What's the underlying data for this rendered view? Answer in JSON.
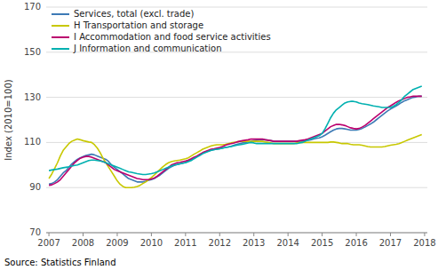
{
  "chart_data": {
    "type": "line",
    "ylabel": "Index (2010=100)",
    "source": "Source: Statistics Finland",
    "ylim": [
      70,
      170
    ],
    "yticks": [
      70,
      90,
      110,
      130,
      150,
      170
    ],
    "xlim": [
      2006.92,
      2018.08
    ],
    "xticks": [
      2007,
      2008,
      2009,
      2010,
      2011,
      2012,
      2013,
      2014,
      2015,
      2016,
      2017,
      2018
    ],
    "grid": true,
    "legend": "upper left",
    "x": [
      2007.0,
      2007.083,
      2007.167,
      2007.25,
      2007.333,
      2007.417,
      2007.5,
      2007.583,
      2007.667,
      2007.75,
      2007.833,
      2007.917,
      2008.0,
      2008.083,
      2008.167,
      2008.25,
      2008.333,
      2008.417,
      2008.5,
      2008.583,
      2008.667,
      2008.75,
      2008.833,
      2008.917,
      2009.0,
      2009.083,
      2009.167,
      2009.25,
      2009.333,
      2009.417,
      2009.5,
      2009.583,
      2009.667,
      2009.75,
      2009.833,
      2009.917,
      2010.0,
      2010.083,
      2010.167,
      2010.25,
      2010.333,
      2010.417,
      2010.5,
      2010.583,
      2010.667,
      2010.75,
      2010.833,
      2010.917,
      2011.0,
      2011.083,
      2011.167,
      2011.25,
      2011.333,
      2011.417,
      2011.5,
      2011.583,
      2011.667,
      2011.75,
      2011.833,
      2011.917,
      2012.0,
      2012.083,
      2012.167,
      2012.25,
      2012.333,
      2012.417,
      2012.5,
      2012.583,
      2012.667,
      2012.75,
      2012.833,
      2012.917,
      2013.0,
      2013.083,
      2013.167,
      2013.25,
      2013.333,
      2013.417,
      2013.5,
      2013.583,
      2013.667,
      2013.75,
      2013.833,
      2013.917,
      2014.0,
      2014.083,
      2014.167,
      2014.25,
      2014.333,
      2014.417,
      2014.5,
      2014.583,
      2014.667,
      2014.75,
      2014.833,
      2014.917,
      2015.0,
      2015.083,
      2015.167,
      2015.25,
      2015.333,
      2015.417,
      2015.5,
      2015.583,
      2015.667,
      2015.75,
      2015.833,
      2015.917,
      2016.0,
      2016.083,
      2016.167,
      2016.25,
      2016.333,
      2016.417,
      2016.5,
      2016.583,
      2016.667,
      2016.75,
      2016.833,
      2016.917,
      2017.0,
      2017.083,
      2017.167,
      2017.25,
      2017.333,
      2017.417,
      2017.5,
      2017.583,
      2017.667,
      2017.75,
      2017.833,
      2017.917
    ],
    "series": [
      {
        "name": "Services, total (excl. trade)",
        "color": "#3d7ab5",
        "values": [
          91.5,
          91.8,
          92.5,
          93.5,
          95.0,
          96.5,
          97.5,
          99.0,
          100.5,
          101.5,
          102.5,
          103.2,
          103.8,
          104.2,
          104.5,
          104.8,
          104.5,
          104.0,
          103.5,
          103.0,
          102.5,
          101.5,
          100.0,
          99.0,
          98.0,
          97.0,
          96.0,
          95.0,
          94.0,
          93.5,
          93.0,
          92.5,
          92.5,
          92.5,
          92.8,
          93.2,
          93.5,
          94.0,
          94.8,
          95.5,
          96.5,
          97.5,
          98.5,
          99.2,
          99.8,
          100.2,
          100.5,
          100.8,
          101.2,
          101.8,
          102.5,
          103.0,
          103.8,
          104.5,
          105.2,
          105.8,
          106.2,
          106.5,
          106.8,
          107.0,
          107.2,
          107.5,
          107.8,
          108.0,
          108.3,
          108.8,
          109.2,
          109.5,
          109.8,
          110.0,
          110.3,
          110.5,
          110.8,
          111.0,
          111.2,
          111.2,
          111.2,
          111.0,
          110.8,
          110.5,
          110.5,
          110.5,
          110.5,
          110.5,
          110.5,
          110.5,
          110.5,
          110.5,
          110.5,
          110.5,
          110.8,
          111.0,
          111.2,
          111.5,
          111.8,
          112.0,
          112.5,
          113.2,
          114.0,
          114.8,
          115.5,
          116.0,
          116.2,
          116.2,
          116.0,
          115.8,
          115.5,
          115.5,
          115.5,
          115.8,
          116.2,
          116.8,
          117.5,
          118.2,
          119.0,
          120.0,
          121.0,
          122.0,
          123.0,
          124.0,
          124.8,
          125.5,
          126.2,
          127.0,
          127.8,
          128.5,
          129.0,
          129.5,
          130.0,
          130.2,
          130.5,
          130.5
        ]
      },
      {
        "name": "H Transportation and storage",
        "color": "#c8c800",
        "values": [
          94.0,
          96.0,
          98.5,
          101.0,
          104.0,
          106.5,
          108.0,
          109.5,
          110.5,
          111.0,
          111.5,
          111.2,
          110.8,
          110.5,
          110.2,
          110.0,
          109.0,
          107.5,
          105.5,
          103.0,
          101.0,
          99.0,
          97.0,
          95.0,
          93.0,
          91.5,
          90.5,
          90.0,
          90.0,
          90.0,
          90.2,
          90.5,
          91.0,
          91.8,
          92.5,
          93.5,
          94.5,
          95.5,
          96.8,
          98.0,
          99.2,
          100.2,
          101.0,
          101.5,
          101.8,
          102.0,
          102.2,
          102.5,
          102.8,
          103.2,
          104.0,
          104.8,
          105.5,
          106.2,
          107.0,
          107.5,
          108.0,
          108.5,
          108.8,
          109.0,
          109.0,
          109.0,
          109.2,
          109.5,
          109.8,
          110.0,
          110.2,
          110.5,
          110.5,
          110.5,
          110.5,
          110.5,
          110.5,
          110.5,
          110.5,
          110.5,
          110.2,
          110.0,
          109.8,
          109.5,
          109.5,
          109.5,
          109.5,
          109.5,
          109.5,
          109.5,
          109.5,
          109.8,
          110.0,
          110.0,
          110.0,
          110.0,
          110.0,
          110.0,
          110.0,
          110.0,
          110.0,
          110.0,
          110.0,
          110.2,
          110.2,
          110.0,
          109.8,
          109.5,
          109.5,
          109.5,
          109.2,
          109.0,
          109.0,
          109.0,
          108.8,
          108.5,
          108.2,
          108.0,
          108.0,
          108.0,
          108.0,
          108.0,
          108.2,
          108.5,
          108.8,
          109.0,
          109.2,
          109.5,
          110.0,
          110.5,
          111.0,
          111.5,
          112.0,
          112.5,
          113.0,
          113.5
        ]
      },
      {
        "name": "I Accommodation and food service activities",
        "color": "#bb006e",
        "values": [
          91.0,
          91.2,
          91.8,
          92.5,
          93.5,
          95.0,
          96.5,
          98.0,
          99.5,
          101.0,
          102.0,
          103.0,
          103.5,
          103.8,
          103.8,
          103.5,
          103.0,
          102.5,
          102.0,
          101.5,
          101.0,
          100.0,
          99.0,
          98.0,
          97.5,
          97.0,
          96.5,
          96.0,
          95.5,
          95.0,
          94.5,
          94.0,
          93.8,
          93.5,
          93.5,
          93.5,
          93.8,
          94.2,
          95.0,
          96.0,
          97.0,
          98.0,
          99.0,
          100.0,
          100.5,
          101.0,
          101.2,
          101.5,
          101.8,
          102.2,
          102.8,
          103.5,
          104.0,
          104.8,
          105.5,
          106.0,
          106.5,
          107.0,
          107.2,
          107.5,
          107.8,
          108.2,
          108.8,
          109.2,
          109.5,
          109.8,
          110.2,
          110.5,
          110.8,
          111.0,
          111.2,
          111.5,
          111.5,
          111.5,
          111.5,
          111.5,
          111.2,
          111.0,
          110.8,
          110.5,
          110.5,
          110.5,
          110.5,
          110.5,
          110.5,
          110.5,
          110.5,
          110.5,
          110.8,
          111.0,
          111.2,
          111.5,
          112.0,
          112.5,
          113.0,
          113.5,
          114.0,
          115.0,
          116.0,
          117.0,
          117.5,
          118.0,
          118.0,
          117.8,
          117.5,
          117.0,
          116.5,
          116.2,
          116.0,
          116.2,
          116.8,
          117.5,
          118.5,
          119.5,
          120.5,
          121.5,
          122.5,
          123.5,
          124.5,
          125.5,
          126.2,
          127.0,
          127.8,
          128.5,
          129.0,
          129.5,
          130.0,
          130.2,
          130.5,
          130.5,
          130.5,
          130.5
        ]
      },
      {
        "name": "J Information and communication",
        "color": "#00b0b0",
        "values": [
          97.5,
          97.8,
          98.0,
          98.2,
          98.5,
          98.8,
          99.0,
          99.2,
          99.5,
          99.8,
          100.0,
          100.5,
          101.0,
          101.5,
          102.0,
          102.2,
          102.2,
          102.0,
          101.8,
          101.5,
          101.0,
          100.5,
          100.0,
          99.5,
          99.0,
          98.5,
          98.0,
          97.5,
          97.0,
          96.8,
          96.5,
          96.2,
          96.0,
          95.8,
          95.8,
          96.0,
          96.2,
          96.5,
          97.0,
          97.5,
          98.0,
          98.5,
          99.0,
          99.5,
          100.0,
          100.2,
          100.5,
          100.8,
          101.0,
          101.5,
          102.0,
          102.8,
          103.5,
          104.2,
          105.0,
          105.5,
          106.0,
          106.5,
          106.8,
          107.0,
          107.2,
          107.5,
          107.8,
          108.0,
          108.2,
          108.5,
          108.8,
          109.0,
          109.2,
          109.5,
          109.8,
          110.0,
          109.8,
          109.5,
          109.5,
          109.5,
          109.5,
          109.5,
          109.5,
          109.5,
          109.5,
          109.5,
          109.5,
          109.5,
          109.5,
          109.5,
          109.5,
          109.5,
          109.8,
          110.0,
          110.5,
          111.0,
          111.5,
          112.0,
          112.5,
          113.0,
          114.0,
          116.0,
          118.5,
          121.0,
          123.0,
          124.5,
          125.5,
          126.5,
          127.5,
          128.0,
          128.2,
          128.2,
          128.0,
          127.5,
          127.2,
          127.0,
          126.8,
          126.5,
          126.2,
          126.0,
          125.8,
          125.5,
          125.5,
          125.5,
          125.5,
          126.0,
          126.8,
          127.8,
          129.0,
          130.5,
          131.5,
          132.5,
          133.5,
          134.0,
          134.5,
          135.0
        ]
      }
    ]
  }
}
